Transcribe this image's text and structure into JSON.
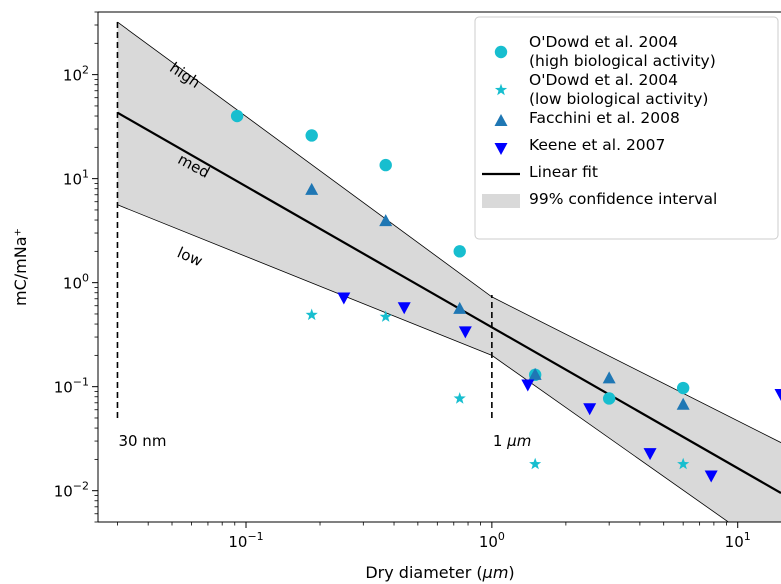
{
  "chart_data": {
    "type": "scatter",
    "xlabel": "Dry diameter (μm)",
    "ylabel": "mC/mNa⁺",
    "xscale": "log",
    "yscale": "log",
    "xlim": [
      0.025,
      15
    ],
    "ylim": [
      0.005,
      400
    ],
    "xticks": [
      {
        "value": 0.1,
        "base": "10",
        "exp": "−1"
      },
      {
        "value": 1,
        "base": "10",
        "exp": "0"
      },
      {
        "value": 10,
        "base": "10",
        "exp": "1"
      }
    ],
    "yticks": [
      {
        "value": 0.01,
        "base": "10",
        "exp": "−2"
      },
      {
        "value": 0.1,
        "base": "10",
        "exp": "−1"
      },
      {
        "value": 1,
        "base": "10",
        "exp": "0"
      },
      {
        "value": 10,
        "base": "10",
        "exp": "1"
      },
      {
        "value": 100,
        "base": "10",
        "exp": "2"
      }
    ],
    "legend_position": "top-right",
    "series": [
      {
        "name": "O'Dowd et al. 2004 (high biological activity)",
        "legend_lines": [
          "O'Dowd et al. 2004",
          "(high biological activity)"
        ],
        "marker": "circle",
        "color": "#17becf",
        "points": [
          [
            0.092,
            40
          ],
          [
            0.185,
            26
          ],
          [
            0.37,
            13.5
          ],
          [
            0.74,
            2.0
          ],
          [
            1.5,
            0.13
          ],
          [
            3.0,
            0.077
          ],
          [
            6.0,
            0.097
          ]
        ]
      },
      {
        "name": "O'Dowd et al. 2004 (low biological activity)",
        "legend_lines": [
          "O'Dowd et al. 2004",
          "(low biological activity)"
        ],
        "marker": "star",
        "color": "#17becf",
        "points": [
          [
            0.185,
            0.49
          ],
          [
            0.37,
            0.47
          ],
          [
            0.74,
            0.077
          ],
          [
            1.5,
            0.018
          ],
          [
            6.0,
            0.018
          ]
        ]
      },
      {
        "name": "Facchini et al. 2008",
        "legend_lines": [
          "Facchini et al. 2008"
        ],
        "marker": "triangle-up",
        "color": "#1f77b4",
        "points": [
          [
            0.185,
            7.8
          ],
          [
            0.37,
            3.9
          ],
          [
            0.74,
            0.56
          ],
          [
            1.5,
            0.13
          ],
          [
            3.0,
            0.12
          ],
          [
            6.0,
            0.067
          ]
        ]
      },
      {
        "name": "Keene et al. 2007",
        "legend_lines": [
          "Keene et al. 2007"
        ],
        "marker": "triangle-down",
        "color": "#0000ff",
        "points": [
          [
            0.25,
            0.72
          ],
          [
            0.44,
            0.58
          ],
          [
            0.78,
            0.34
          ],
          [
            1.4,
            0.105
          ],
          [
            2.5,
            0.062
          ],
          [
            4.4,
            0.023
          ],
          [
            7.8,
            0.014
          ],
          [
            15,
            0.085
          ]
        ]
      }
    ],
    "fit": {
      "name": "Linear fit",
      "color": "#000000",
      "points": [
        [
          0.03,
          43
        ],
        [
          15,
          0.0095
        ]
      ]
    },
    "confidence": {
      "name": "99% confidence interval",
      "color": "#d9d9d9",
      "upper": [
        [
          0.03,
          320
        ],
        [
          1,
          0.73
        ],
        [
          15,
          0.029
        ]
      ],
      "lower": [
        [
          0.03,
          5.6
        ],
        [
          1,
          0.2
        ],
        [
          15,
          0.0022
        ]
      ]
    },
    "annotations": {
      "curve_labels": [
        {
          "text": "high",
          "x": 0.055,
          "y": 90,
          "angle": 34
        },
        {
          "text": "med",
          "x": 0.06,
          "y": 12,
          "angle": 28
        },
        {
          "text": "low",
          "x": 0.058,
          "y": 1.6,
          "angle": 24
        }
      ],
      "vlines": [
        {
          "x": 0.03,
          "y_from": 0.05,
          "y_to": 330,
          "label": "30 nm",
          "label_y": 0.03
        },
        {
          "x": 1.0,
          "y_from": 0.05,
          "y_to": 0.76,
          "label_prefix": "1 ",
          "label_unit": "μm",
          "label_y": 0.03
        }
      ]
    }
  }
}
